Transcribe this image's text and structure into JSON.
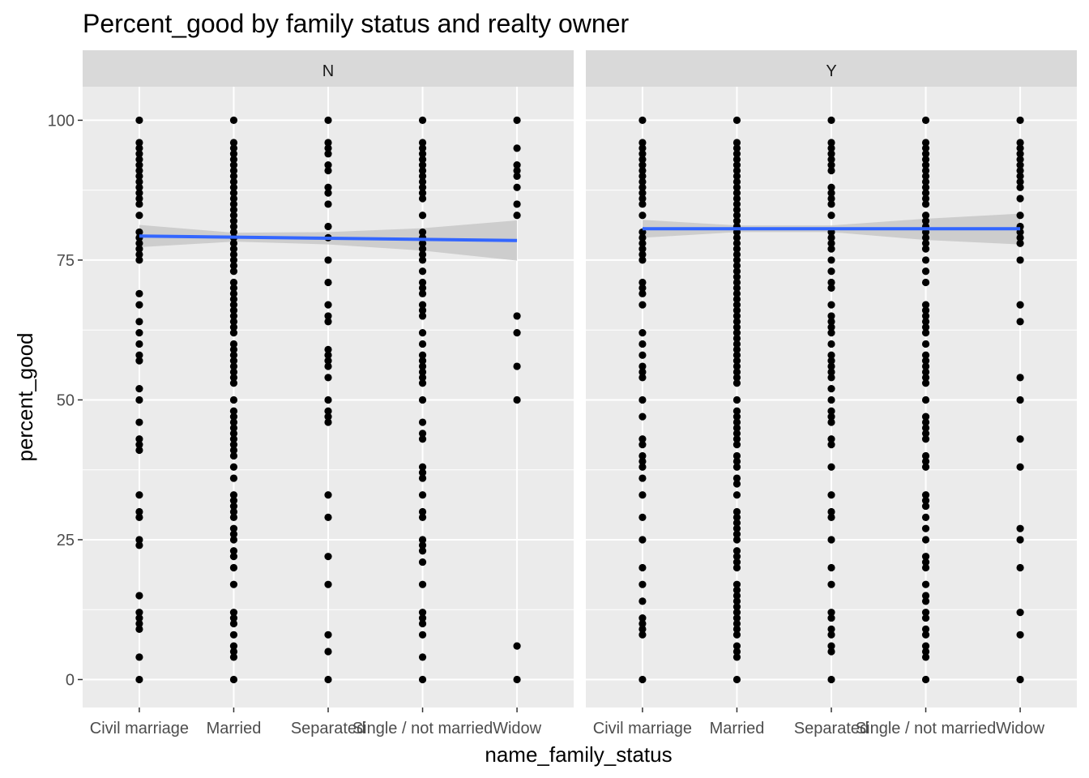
{
  "chart_data": {
    "type": "scatter",
    "title": "Percent_good by family status and realty owner",
    "xlabel": "name_family_status",
    "ylabel": "percent_good",
    "categories": [
      "Civil marriage",
      "Married",
      "Separated",
      "Single / not married",
      "Widow"
    ],
    "ylim": [
      -5,
      106
    ],
    "yticks": [
      0,
      25,
      50,
      75,
      100
    ],
    "grid": true,
    "colors": {
      "panel_bg": "#ebebeb",
      "strip_bg": "#d9d9d9",
      "grid": "#ffffff",
      "point": "#000000",
      "smooth_line": "#3366ff",
      "ribbon": "#c8c8c8"
    },
    "panels": [
      {
        "facet": "N",
        "points": [
          {
            "category": "Civil marriage",
            "y": [
              100,
              96,
              95,
              94,
              93,
              92,
              91,
              90,
              89,
              88,
              87,
              86,
              85,
              83,
              80,
              79,
              78,
              77,
              76,
              75,
              69,
              67,
              64,
              62,
              60,
              58,
              57,
              52,
              50,
              46,
              43,
              42,
              41,
              33,
              30,
              29,
              25,
              24,
              15,
              12,
              11,
              10,
              9,
              4,
              0
            ]
          },
          {
            "category": "Married",
            "y": [
              100,
              96,
              95,
              94,
              93,
              92,
              91,
              90,
              89,
              88,
              87,
              86,
              85,
              84,
              83,
              82,
              81,
              80,
              79,
              78,
              77,
              76,
              75,
              74,
              73,
              71,
              70,
              69,
              68,
              67,
              66,
              65,
              64,
              63,
              62,
              60,
              59,
              58,
              57,
              56,
              55,
              54,
              53,
              50,
              48,
              47,
              46,
              45,
              44,
              43,
              42,
              41,
              40,
              38,
              36,
              33,
              32,
              31,
              30,
              29,
              27,
              26,
              25,
              23,
              22,
              20,
              17,
              12,
              11,
              10,
              8,
              6,
              5,
              4,
              0
            ]
          },
          {
            "category": "Separated",
            "y": [
              100,
              96,
              95,
              94,
              92,
              91,
              88,
              87,
              85,
              81,
              79,
              75,
              71,
              67,
              65,
              64,
              59,
              58,
              57,
              56,
              54,
              50,
              48,
              47,
              46,
              33,
              29,
              22,
              17,
              8,
              5,
              0
            ]
          },
          {
            "category": "Single / not married",
            "y": [
              100,
              96,
              95,
              94,
              93,
              92,
              91,
              90,
              89,
              88,
              87,
              86,
              83,
              80,
              79,
              78,
              77,
              76,
              75,
              73,
              71,
              70,
              69,
              67,
              66,
              65,
              62,
              60,
              58,
              57,
              56,
              55,
              54,
              53,
              50,
              46,
              44,
              43,
              38,
              37,
              36,
              33,
              30,
              29,
              25,
              24,
              23,
              21,
              17,
              12,
              11,
              10,
              8,
              4,
              0
            ]
          },
          {
            "category": "Widow",
            "y": [
              100,
              95,
              92,
              91,
              90,
              88,
              85,
              83,
              65,
              62,
              56,
              50,
              6,
              0
            ]
          }
        ],
        "smooth": {
          "category_index": [
            1,
            2,
            3,
            4,
            5
          ],
          "y": [
            79.3,
            79.1,
            78.9,
            78.7,
            78.5
          ]
        },
        "ribbon": {
          "lower": [
            77.3,
            78.3,
            77.8,
            76.7,
            74.9
          ],
          "upper": [
            81.3,
            79.9,
            80.0,
            80.7,
            82.1
          ]
        }
      },
      {
        "facet": "Y",
        "points": [
          {
            "category": "Civil marriage",
            "y": [
              100,
              96,
              95,
              94,
              93,
              92,
              91,
              90,
              89,
              88,
              87,
              86,
              85,
              83,
              80,
              79,
              78,
              77,
              76,
              75,
              71,
              70,
              69,
              67,
              62,
              60,
              58,
              56,
              55,
              54,
              50,
              47,
              43,
              42,
              40,
              39,
              38,
              36,
              33,
              29,
              25,
              20,
              17,
              14,
              11,
              10,
              9,
              8,
              0
            ]
          },
          {
            "category": "Married",
            "y": [
              100,
              96,
              95,
              94,
              93,
              92,
              91,
              90,
              89,
              88,
              87,
              86,
              85,
              84,
              83,
              82,
              81,
              80,
              79,
              78,
              77,
              76,
              75,
              74,
              73,
              72,
              71,
              70,
              69,
              68,
              67,
              66,
              65,
              64,
              63,
              62,
              61,
              60,
              59,
              58,
              57,
              56,
              55,
              54,
              53,
              50,
              48,
              47,
              46,
              45,
              44,
              43,
              42,
              40,
              39,
              38,
              36,
              35,
              33,
              30,
              29,
              28,
              27,
              26,
              25,
              23,
              22,
              21,
              20,
              17,
              16,
              15,
              14,
              13,
              12,
              11,
              10,
              9,
              8,
              6,
              5,
              4,
              0
            ]
          },
          {
            "category": "Separated",
            "y": [
              100,
              96,
              95,
              94,
              93,
              92,
              91,
              88,
              87,
              86,
              85,
              83,
              80,
              79,
              78,
              77,
              75,
              73,
              71,
              70,
              67,
              65,
              64,
              63,
              62,
              60,
              58,
              57,
              56,
              55,
              54,
              52,
              50,
              48,
              47,
              46,
              43,
              42,
              38,
              33,
              30,
              29,
              25,
              20,
              17,
              12,
              11,
              9,
              8,
              6,
              5,
              0
            ]
          },
          {
            "category": "Single / not married",
            "y": [
              100,
              96,
              95,
              94,
              93,
              92,
              91,
              90,
              89,
              88,
              87,
              86,
              85,
              83,
              82,
              81,
              80,
              79,
              78,
              77,
              75,
              73,
              71,
              67,
              66,
              65,
              64,
              63,
              62,
              60,
              58,
              57,
              56,
              55,
              54,
              53,
              50,
              47,
              46,
              45,
              44,
              43,
              40,
              39,
              38,
              33,
              32,
              31,
              29,
              27,
              25,
              22,
              21,
              20,
              17,
              15,
              14,
              12,
              11,
              9,
              8,
              6,
              5,
              4,
              0
            ]
          },
          {
            "category": "Widow",
            "y": [
              100,
              96,
              95,
              94,
              93,
              92,
              91,
              90,
              89,
              88,
              86,
              83,
              81,
              80,
              79,
              78,
              75,
              67,
              64,
              54,
              50,
              43,
              38,
              27,
              25,
              20,
              12,
              8,
              0
            ]
          }
        ],
        "smooth": {
          "category_index": [
            1,
            2,
            3,
            4,
            5
          ],
          "y": [
            80.6,
            80.6,
            80.6,
            80.6,
            80.6
          ]
        },
        "ribbon": {
          "lower": [
            79.0,
            80.0,
            80.0,
            78.6,
            77.8
          ],
          "upper": [
            82.2,
            81.2,
            81.2,
            82.4,
            83.3
          ]
        }
      }
    ]
  }
}
